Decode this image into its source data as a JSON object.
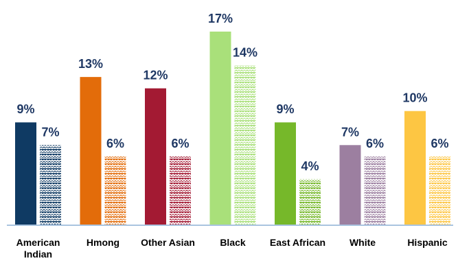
{
  "chart_data": {
    "type": "bar",
    "categories": [
      {
        "lines": [
          "American",
          "Indian"
        ],
        "color": "#0f3a63"
      },
      {
        "lines": [
          "Hmong"
        ],
        "color": "#e36c0a"
      },
      {
        "lines": [
          "Other Asian"
        ],
        "color": "#a31a33"
      },
      {
        "lines": [
          "Black"
        ],
        "color": "#a9e07a"
      },
      {
        "lines": [
          "East African"
        ],
        "color": "#76b82a"
      },
      {
        "lines": [
          "White"
        ],
        "color": "#9c7fa0"
      },
      {
        "lines": [
          "Hispanic"
        ],
        "color": "#fdc643"
      }
    ],
    "series": [
      {
        "pattern": "solid",
        "values": [
          9,
          13,
          12,
          17,
          9,
          7,
          10
        ],
        "labels": [
          "9%",
          "13%",
          "12%",
          "17%",
          "9%",
          "7%",
          "10%"
        ]
      },
      {
        "pattern": "zigzag",
        "values": [
          7,
          6,
          6,
          14,
          4,
          6,
          6
        ],
        "labels": [
          "7%",
          "6%",
          "6%",
          "14%",
          "4%",
          "6%",
          "6%"
        ]
      }
    ],
    "ylim": [
      0,
      17
    ],
    "grid": false,
    "axis_color": "#a9c4e0",
    "label_color": "#1f3864"
  }
}
